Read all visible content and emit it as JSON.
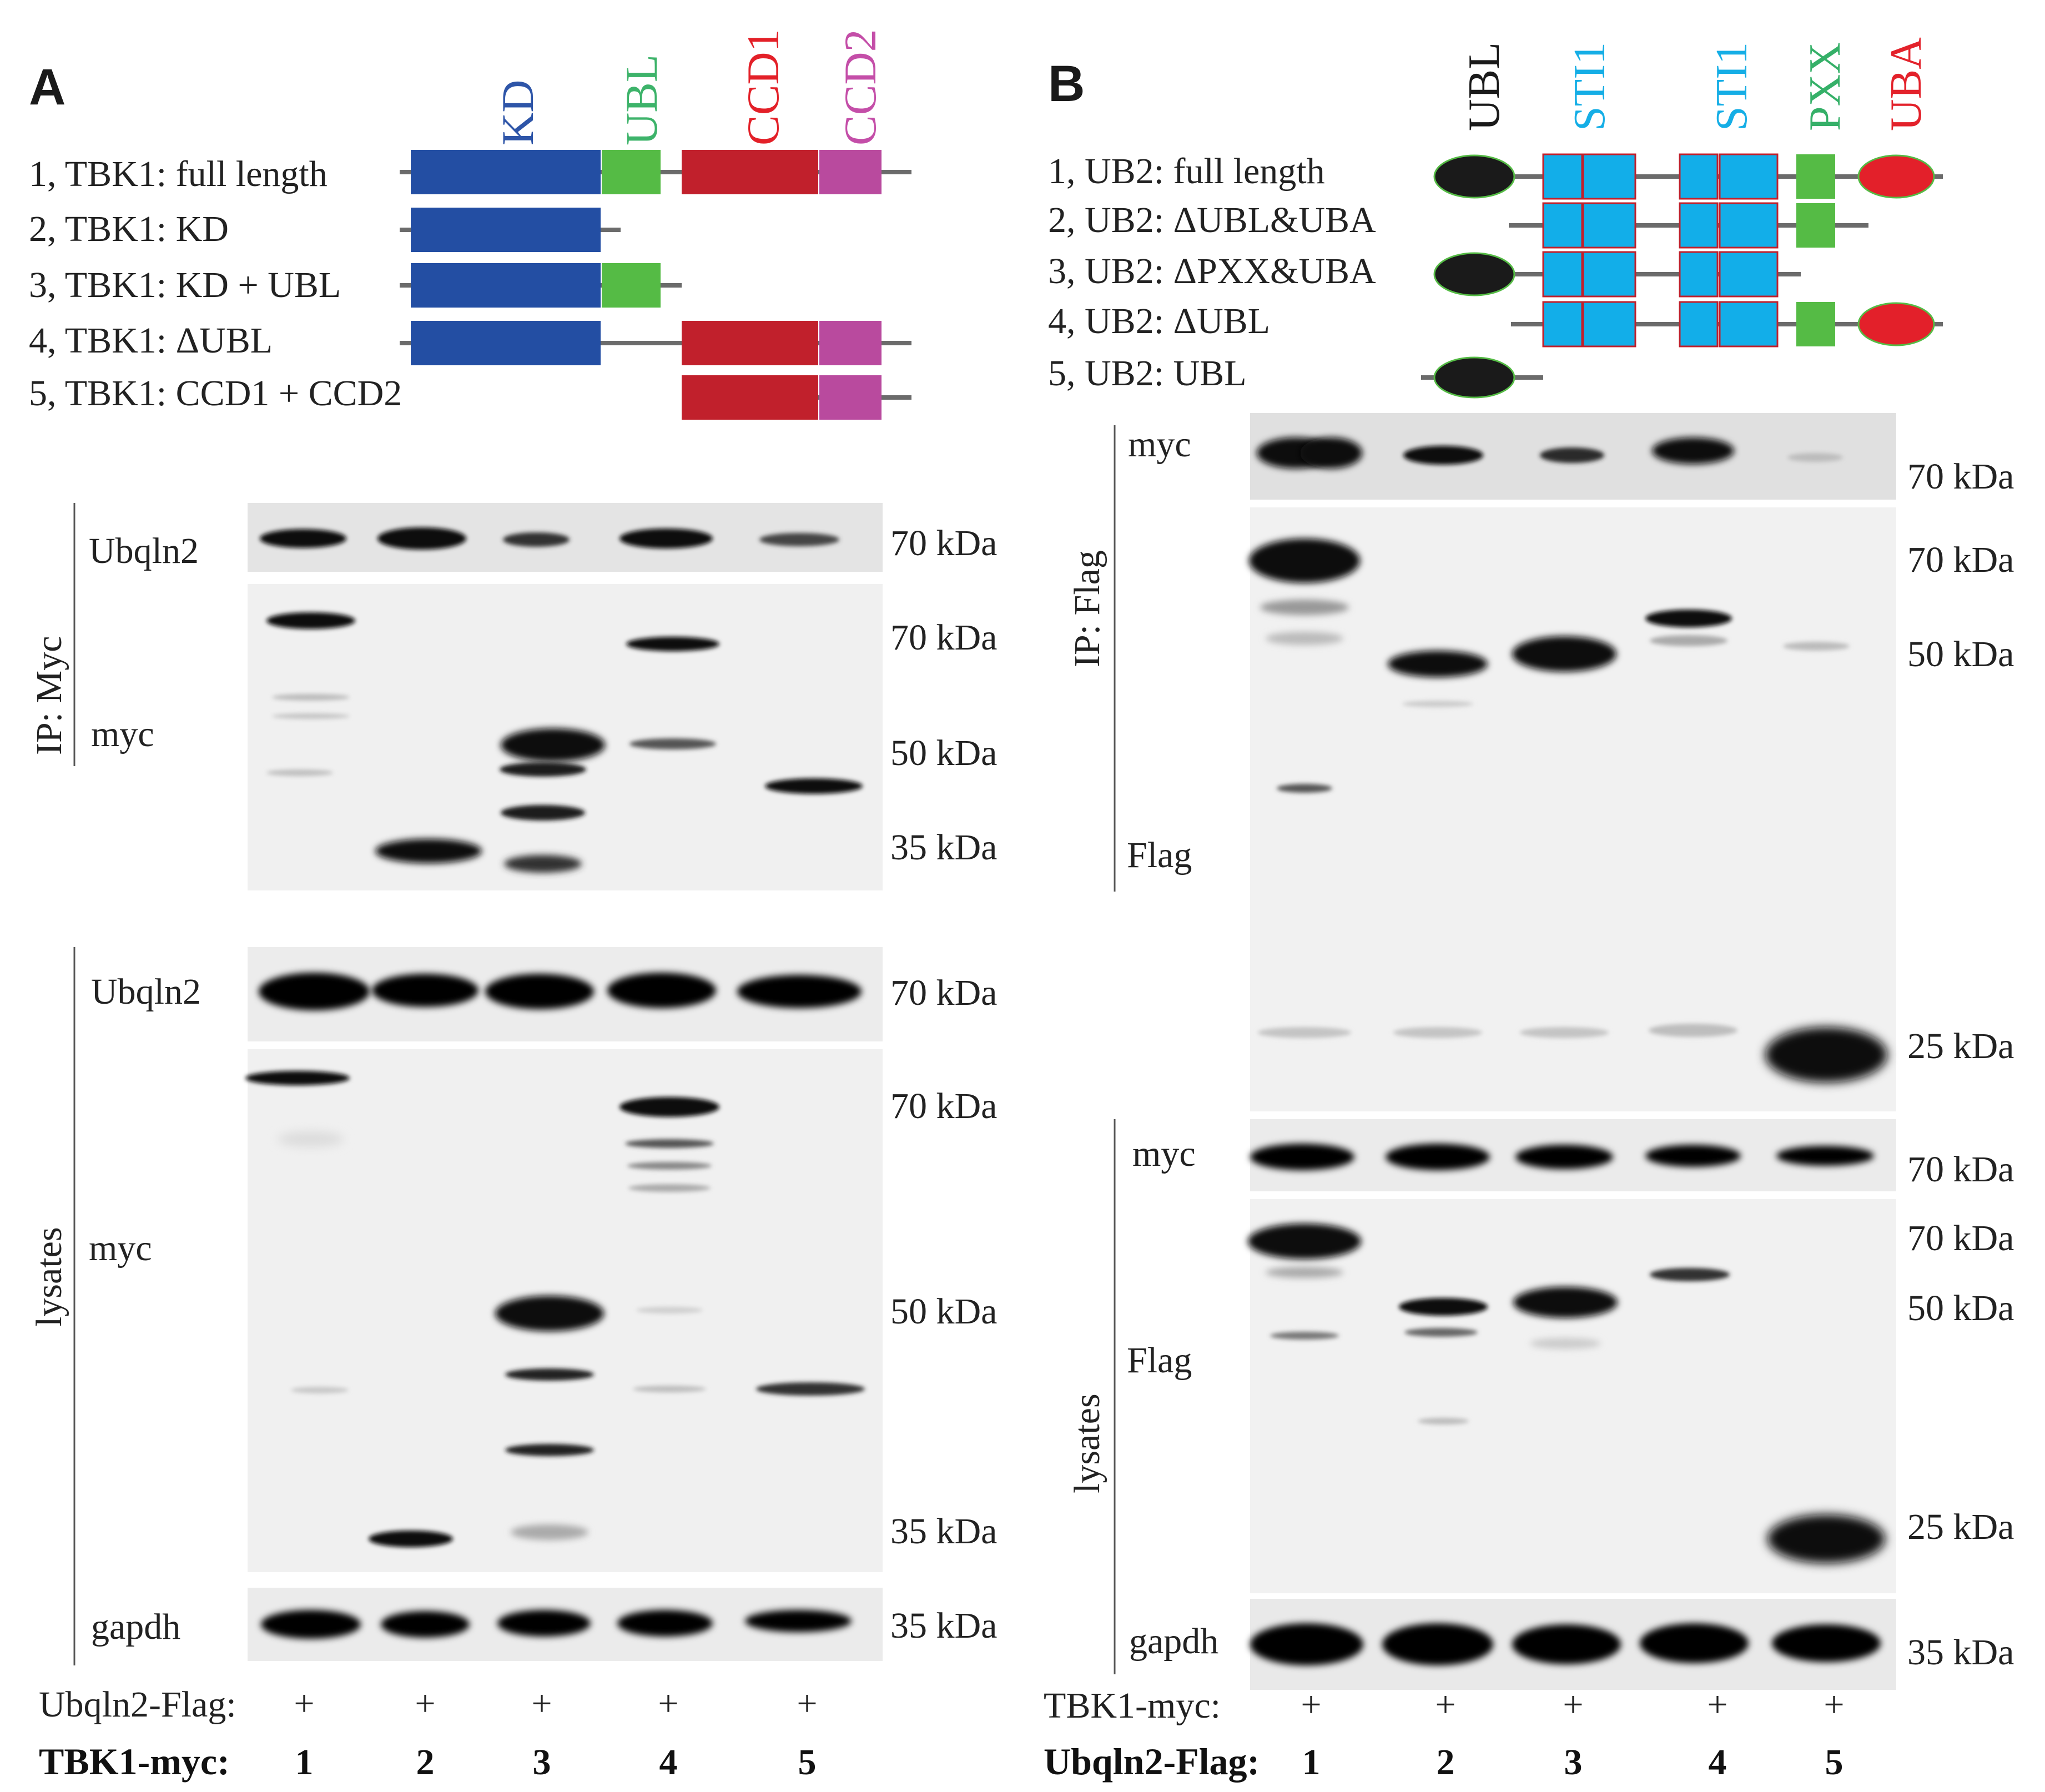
{
  "panel_a": {
    "letter": "A",
    "domains": {
      "kd": "KD",
      "ubl": "UBL",
      "ccd1": "CCD1",
      "ccd2": "CCD2"
    },
    "constructs": [
      "1, TBK1: full length",
      "2, TBK1: KD",
      "3, TBK1: KD + UBL",
      "4, TBK1: ΔUBL",
      "5, TBK1: CCD1 + CCD2"
    ],
    "ip_label": "IP: Myc",
    "lysates_label": "lysates",
    "blot_labels": {
      "ubqln2_ip": "Ubqln2",
      "myc_ip": "myc",
      "ubqln2_lys": "Ubqln2",
      "myc_lys": "myc",
      "gapdh": "gapdh"
    },
    "markers": {
      "ubqln2_ip": "70 kDa",
      "myc_ip": [
        "70 kDa",
        "50 kDa",
        "35 kDa"
      ],
      "ubqln2_lys": "70 kDa",
      "myc_lys": [
        "70 kDa",
        "50 kDa",
        "35 kDa"
      ],
      "gapdh": "35 kDa"
    },
    "row1_label": "Ubqln2-Flag:",
    "row1_values": [
      "+",
      "+",
      "+",
      "+",
      "+"
    ],
    "row2_label": "TBK1-myc:",
    "row2_values": [
      "1",
      "2",
      "3",
      "4",
      "5"
    ]
  },
  "panel_b": {
    "letter": "B",
    "domains": {
      "ubl": "UBL",
      "sti1_a": "STI1",
      "sti1_b": "STI1",
      "pxx": "PXX",
      "uba": "UBA"
    },
    "constructs": [
      "1, UB2: full length",
      "2, UB2: ΔUBL&UBA",
      "3, UB2: ΔPXX&UBA",
      "4, UB2: ΔUBL",
      "5, UB2: UBL"
    ],
    "ip_label": "IP: Flag",
    "lysates_label": "lysates",
    "blot_labels": {
      "myc_ip": "myc",
      "flag_ip": "Flag",
      "myc_lys": "myc",
      "flag_lys": "Flag",
      "gapdh": "gapdh"
    },
    "markers": {
      "myc_ip": "70 kDa",
      "flag_ip": [
        "70 kDa",
        "50 kDa",
        "25 kDa"
      ],
      "myc_lys": "70 kDa",
      "flag_lys": [
        "70 kDa",
        "50 kDa",
        "25 kDa"
      ],
      "gapdh": "35 kDa"
    },
    "row1_label": "TBK1-myc:",
    "row1_values": [
      "+",
      "+",
      "+",
      "+",
      "+"
    ],
    "row2_label": "Ubqln2-Flag:",
    "row2_values": [
      "1",
      "2",
      "3",
      "4",
      "5"
    ]
  },
  "colors": {
    "kd": "#234ea3",
    "ubl_a": "#55bb45",
    "ccd1": "#c1202c",
    "ccd2": "#b94a9e",
    "ubl_b": "#1a1a1a",
    "sti1": "#12aee9",
    "pxx": "#55bb45",
    "uba": "#e3202a",
    "ccd1_text": "#e32028",
    "ccd2_text": "#c44ea8",
    "ubl_text": "#3db36a",
    "kd_text": "#2e55a8",
    "sti1_text": "#15aee6",
    "pxx_text": "#35b068",
    "uba_text": "#e3222b",
    "line": "#6b6b6b",
    "blot_bg": "#f0f0f0",
    "band": "#0a0a0a"
  }
}
